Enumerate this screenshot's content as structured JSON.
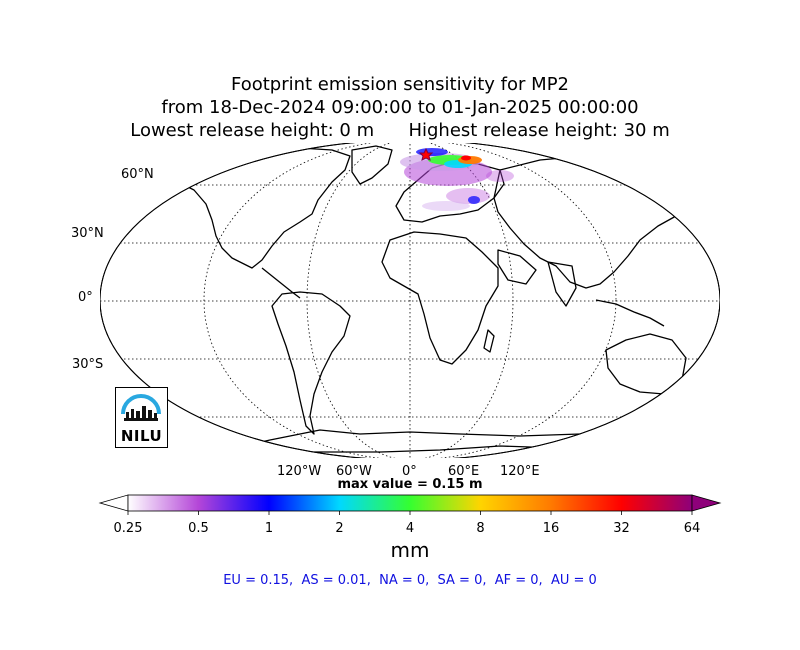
{
  "title": {
    "line1": "Footprint emission sensitivity for MP2",
    "line2": "from 18-Dec-2024 09:00:00 to 01-Jan-2025 00:00:00",
    "line3": "Lowest release height: 0 m      Highest release height: 30 m"
  },
  "map": {
    "projection": "robinson",
    "lat_labels": [
      "60°N",
      "30°N",
      "0°",
      "30°S"
    ],
    "lon_labels": [
      "120°W",
      "60°W",
      "0°",
      "60°E",
      "120°E"
    ],
    "graticule": "dotted",
    "release_site_marker": "star",
    "logo_text": "NILU"
  },
  "max_value": "max value = 0.15 m",
  "colorbar": {
    "ticks": [
      "0.25",
      "0.5",
      "1",
      "2",
      "4",
      "8",
      "16",
      "32",
      "64"
    ],
    "colors": [
      "#ffffff",
      "#b446d8",
      "#0000ff",
      "#00d8ff",
      "#35ff30",
      "#ffd400",
      "#ff7a00",
      "#ff0000",
      "#8e007a"
    ],
    "units": "mm",
    "extend": "both"
  },
  "regions_text": "EU = 0.15,  AS = 0.01,  NA = 0,  SA = 0,  AF = 0,  AU = 0"
}
